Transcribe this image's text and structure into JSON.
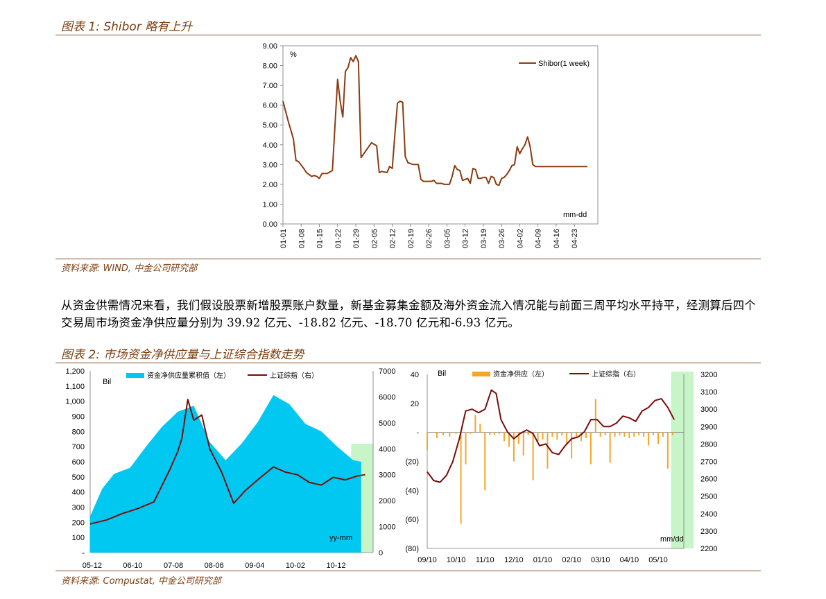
{
  "fig1": {
    "title": "图表 1:  Shibor 略有上升",
    "source": "资料来源:  WIND,  中金公司研究部"
  },
  "paragraph": "从资金供需情况来看，我们假设股票新增股票账户数量，新基金募集金额及海外资金流入情况能与前面三周平均水平持平，经测算后四个交易周市场资金净供应量分别为 39.92 亿元、-18.82 亿元、-18.70 亿元和-6.93 亿元。",
  "fig2": {
    "title": "图表 2:  市场资金净供应量与上证综合指数走势",
    "source": "资料来源:  Compustat, 中金公司研究部"
  },
  "colors": {
    "brown": "#8B3A0F",
    "cyan": "#00C8F0",
    "orange": "#F5A623",
    "darkred": "#7A0A0A",
    "highlight": "#C8F5C8"
  },
  "chart_data": [
    {
      "type": "line",
      "title": "",
      "unit_label": "%",
      "xlabel": "mm-dd",
      "ylim": [
        0,
        9
      ],
      "yticks": [
        "0.00",
        "1.00",
        "2.00",
        "3.00",
        "4.00",
        "5.00",
        "6.00",
        "7.00",
        "8.00",
        "9.00"
      ],
      "categories": [
        "01-01",
        "01-08",
        "01-15",
        "01-22",
        "01-29",
        "02-05",
        "02-12",
        "02-19",
        "02-26",
        "03-05",
        "03-12",
        "03-19",
        "03-26",
        "04-02",
        "04-09",
        "04-16",
        "04-23"
      ],
      "series": [
        {
          "name": "Shibor(1 week)",
          "x": [
            0,
            2,
            4,
            5,
            6,
            8,
            9,
            11,
            12,
            13,
            14,
            15,
            16,
            17,
            19,
            21,
            22,
            23,
            24,
            25,
            26,
            27,
            28,
            29,
            30,
            34,
            36,
            37,
            38,
            40,
            41,
            42,
            43,
            44,
            45,
            46,
            47,
            48,
            49,
            50,
            51,
            52,
            53,
            54,
            55,
            56,
            57,
            58,
            59,
            60,
            61,
            62,
            63,
            64,
            65,
            66,
            67,
            68,
            69,
            70,
            71,
            72,
            73,
            74,
            75,
            76,
            77,
            78,
            79,
            80,
            81,
            82,
            83,
            84,
            85,
            86,
            87,
            88,
            89,
            90,
            91,
            92,
            93,
            94,
            95,
            96,
            97,
            98,
            99,
            100,
            101,
            102,
            103,
            104,
            105,
            106,
            107,
            108,
            109,
            110,
            111,
            112,
            113,
            114,
            115,
            116,
            117
          ],
          "values": [
            6.2,
            5.2,
            4.3,
            3.2,
            3.15,
            2.8,
            2.6,
            2.4,
            2.45,
            2.4,
            2.3,
            2.55,
            2.55,
            2.55,
            2.7,
            7.3,
            6.2,
            5.4,
            7.7,
            7.9,
            8.4,
            8.2,
            8.5,
            8.2,
            3.35,
            4.1,
            3.95,
            2.6,
            2.65,
            2.6,
            2.9,
            2.8,
            4.5,
            6.1,
            6.2,
            6.15,
            3.4,
            3.1,
            3.05,
            3.0,
            3.0,
            3.0,
            2.25,
            2.15,
            2.15,
            2.15,
            2.15,
            2.2,
            2.05,
            2.05,
            2.05,
            2.0,
            2.0,
            2.0,
            2.4,
            2.95,
            2.75,
            2.7,
            2.2,
            2.25,
            2.3,
            2.05,
            2.8,
            2.75,
            2.3,
            2.3,
            2.35,
            2.35,
            2.05,
            2.4,
            2.35,
            2.0,
            1.95,
            2.3,
            2.35,
            2.5,
            2.7,
            2.95,
            3.0,
            3.9,
            3.55,
            3.8,
            4.0,
            4.4,
            3.9,
            3.0,
            2.9,
            2.9,
            2.9,
            2.9,
            2.9,
            2.9,
            2.9,
            2.9,
            2.9,
            2.9,
            2.9,
            2.9,
            2.9,
            2.9,
            2.9,
            2.9,
            2.9,
            2.9,
            2.9,
            2.9,
            2.9
          ]
        }
      ]
    },
    {
      "type": "area",
      "title": "",
      "y_unit": "Bil",
      "xlabel": "yy-mm",
      "categories": [
        "05-12",
        "06-10",
        "07-08",
        "08-06",
        "09-04",
        "10-02",
        "10-12"
      ],
      "ylim_left": [
        0,
        1200
      ],
      "yticks_left": [
        "-",
        "100",
        "200",
        "300",
        "400",
        "500",
        "600",
        "700",
        "800",
        "900",
        "1,000",
        "1,100",
        "1,200"
      ],
      "ylim_right": [
        0,
        7000
      ],
      "yticks_right": [
        "0",
        "1000",
        "2000",
        "3000",
        "4000",
        "5000",
        "6000",
        "7000"
      ],
      "series": [
        {
          "name": "资金净供应量累积值（左）",
          "axis": "left",
          "x": [
            0,
            0.3,
            0.6,
            1.0,
            1.4,
            1.8,
            2.2,
            2.6,
            3.0,
            3.4,
            3.8,
            4.2,
            4.6,
            5.0,
            5.4,
            5.8,
            6.2,
            6.6,
            6.8
          ],
          "values": [
            240,
            420,
            520,
            560,
            700,
            830,
            930,
            970,
            730,
            610,
            720,
            860,
            1040,
            980,
            850,
            800,
            700,
            610,
            600
          ]
        },
        {
          "name": "上证综指（右）",
          "axis": "right",
          "x": [
            0,
            0.4,
            0.8,
            1.2,
            1.6,
            2.0,
            2.2,
            2.3,
            2.45,
            2.6,
            2.8,
            3.0,
            3.3,
            3.6,
            3.9,
            4.2,
            4.6,
            4.9,
            5.2,
            5.5,
            5.8,
            6.1,
            6.4,
            6.7,
            6.9
          ],
          "values": [
            1100,
            1250,
            1500,
            1700,
            1950,
            3200,
            3900,
            4400,
            5900,
            5100,
            5300,
            4000,
            3100,
            1900,
            2400,
            2800,
            3300,
            3100,
            3000,
            2700,
            2600,
            2900,
            2800,
            2950,
            3000
          ]
        }
      ]
    },
    {
      "type": "bar",
      "title": "",
      "y_unit": "Bil",
      "xlabel": "mm/dd",
      "categories": [
        "09/10",
        "10/10",
        "11/10",
        "12/10",
        "01/10",
        "02/10",
        "03/10",
        "04/10",
        "05/10"
      ],
      "ylim_left": [
        -80,
        40
      ],
      "yticks_left": [
        "(80)",
        "(60)",
        "(40)",
        "(20)",
        "-",
        "20",
        "40"
      ],
      "ylim_right": [
        2200,
        3200
      ],
      "yticks_right": [
        "2200",
        "2300",
        "2400",
        "2500",
        "2600",
        "2700",
        "2800",
        "2900",
        "3000",
        "3100",
        "3200"
      ],
      "series": [
        {
          "name": "资金净供应（左）",
          "axis": "left",
          "x": [
            0,
            0.3,
            0.5,
            0.7,
            0.9,
            1.05,
            1.2,
            1.35,
            1.5,
            1.65,
            1.8,
            1.95,
            2.1,
            2.25,
            2.4,
            2.55,
            2.7,
            2.85,
            3.0,
            3.15,
            3.3,
            3.45,
            3.6,
            3.75,
            3.9,
            4.05,
            4.2,
            4.35,
            4.5,
            4.65,
            4.8,
            4.95,
            5.1,
            5.25,
            5.4,
            5.55,
            5.7,
            5.85,
            6.0,
            6.15,
            6.3,
            6.45,
            6.6,
            6.75,
            6.9,
            7.05,
            7.2,
            7.35,
            7.5,
            7.65
          ],
          "values": [
            -12,
            -4,
            -2,
            -3,
            -1,
            -63,
            -22,
            -1,
            12,
            6,
            -40,
            -2,
            -2,
            -1,
            -6,
            -10,
            -20,
            -8,
            -16,
            -2,
            -33,
            -6,
            -5,
            -25,
            -3,
            -5,
            -2,
            -8,
            -18,
            -3,
            -6,
            -4,
            -22,
            23,
            -3,
            -2,
            -21,
            -3,
            -2,
            -3,
            -4,
            -3,
            -2,
            -3,
            -9,
            -2,
            -8,
            -3,
            -25,
            -2
          ]
        },
        {
          "name": "上证综指（右）",
          "axis": "right",
          "x": [
            0,
            0.2,
            0.4,
            0.6,
            0.8,
            1.0,
            1.2,
            1.4,
            1.6,
            1.8,
            2.0,
            2.15,
            2.3,
            2.5,
            2.7,
            2.9,
            3.1,
            3.3,
            3.5,
            3.7,
            3.9,
            4.1,
            4.3,
            4.5,
            4.7,
            4.9,
            5.1,
            5.3,
            5.5,
            5.7,
            5.9,
            6.1,
            6.3,
            6.5,
            6.7,
            6.9,
            7.1,
            7.3,
            7.5,
            7.7
          ],
          "values": [
            2640,
            2590,
            2580,
            2620,
            2700,
            2830,
            2990,
            3000,
            2980,
            3000,
            3110,
            3090,
            2940,
            2870,
            2830,
            2860,
            2880,
            2860,
            2790,
            2800,
            2750,
            2740,
            2790,
            2830,
            2840,
            2870,
            2940,
            2940,
            2900,
            2900,
            2920,
            2960,
            2950,
            2930,
            2990,
            3010,
            3050,
            3060,
            3010,
            2940
          ]
        }
      ]
    }
  ]
}
